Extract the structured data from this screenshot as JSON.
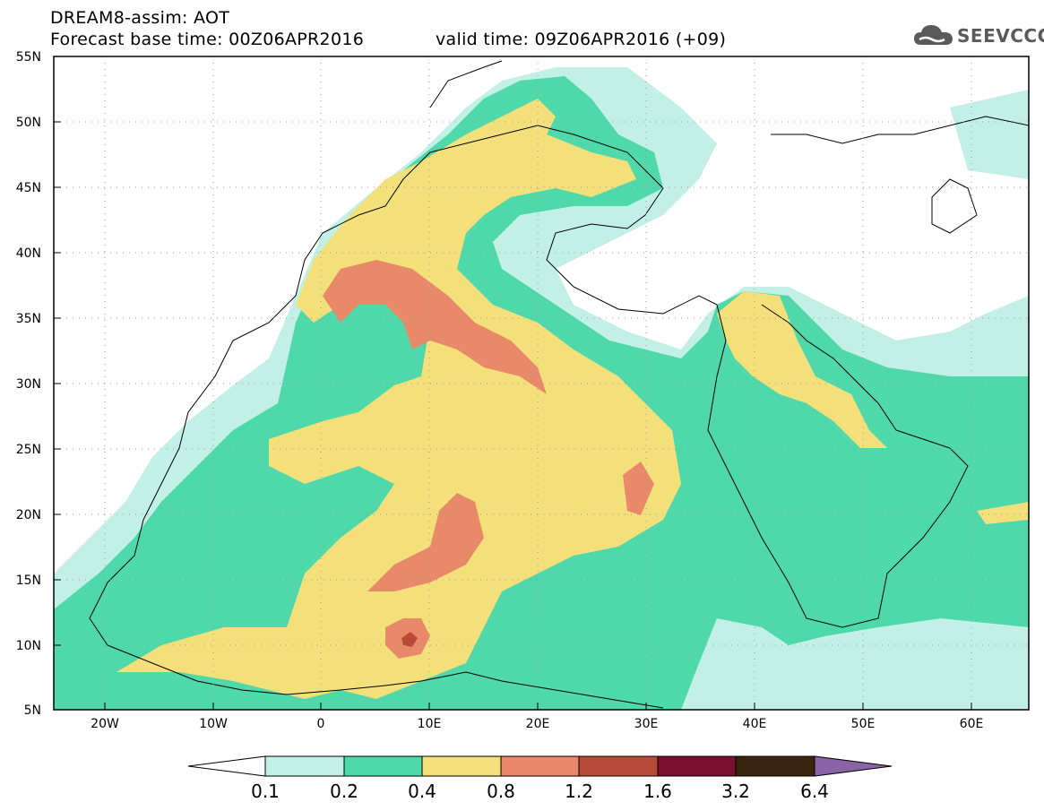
{
  "header": {
    "line1": "DREAM8-assim: AOT",
    "line2": "Forecast base time: 00Z06APR2016",
    "line3": "valid time: 09Z06APR2016 (+09)",
    "logo_text": "SEEVCCC",
    "logo_icon": "cloud-icon"
  },
  "axes": {
    "lat_labels": [
      "55N",
      "50N",
      "45N",
      "40N",
      "35N",
      "30N",
      "25N",
      "20N",
      "15N",
      "10N",
      "5N"
    ],
    "lon_labels": [
      "20W",
      "10W",
      "0",
      "10E",
      "20E",
      "30E",
      "40E",
      "50E",
      "60E"
    ],
    "lat_range": [
      5,
      55
    ],
    "lon_range": [
      -25,
      65
    ],
    "grid": "dotted"
  },
  "colorbar": {
    "labels": [
      "0.1",
      "0.2",
      "0.4",
      "0.8",
      "1.2",
      "1.6",
      "3.2",
      "6.4"
    ],
    "colors": [
      "#ffffff",
      "#c3f0e6",
      "#4fd8aa",
      "#f4e07a",
      "#e8896a",
      "#b84a3a",
      "#7a1030",
      "#3a2410",
      "#8a63a8"
    ]
  }
}
